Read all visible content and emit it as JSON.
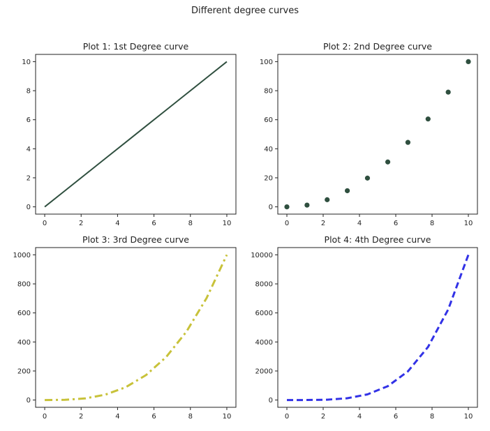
{
  "figure": {
    "suptitle": "Different degree curves"
  },
  "chart_data": [
    {
      "type": "line",
      "title": "Plot 1: 1st Degree curve",
      "xlabel": "",
      "ylabel": "",
      "xlim": [
        -0.5,
        10.5
      ],
      "ylim": [
        -0.5,
        10.5
      ],
      "xticks": [
        0,
        2,
        4,
        6,
        8,
        10
      ],
      "yticks": [
        0,
        2,
        4,
        6,
        8,
        10
      ],
      "series": [
        {
          "style": "solid",
          "marker": "none",
          "color": "#2f4f3f",
          "x": [
            0,
            1.11,
            2.22,
            3.33,
            4.44,
            5.56,
            6.67,
            7.78,
            8.89,
            10
          ],
          "y": [
            0,
            1.11,
            2.22,
            3.33,
            4.44,
            5.56,
            6.67,
            7.78,
            8.89,
            10
          ]
        }
      ],
      "grid": false
    },
    {
      "type": "scatter",
      "title": "Plot 2: 2nd Degree curve",
      "xlabel": "",
      "ylabel": "",
      "xlim": [
        -0.5,
        10.5
      ],
      "ylim": [
        -5,
        105
      ],
      "xticks": [
        0,
        2,
        4,
        6,
        8,
        10
      ],
      "yticks": [
        0,
        20,
        40,
        60,
        80,
        100
      ],
      "series": [
        {
          "style": "none",
          "marker": "circle",
          "color": "#2f4f3f",
          "x": [
            0,
            1.11,
            2.22,
            3.33,
            4.44,
            5.56,
            6.67,
            7.78,
            8.89,
            10
          ],
          "y": [
            0,
            1.2,
            4.9,
            11.1,
            19.8,
            30.9,
            44.4,
            60.5,
            79.0,
            100
          ]
        }
      ],
      "grid": false
    },
    {
      "type": "line",
      "title": "Plot 3: 3rd Degree curve",
      "xlabel": "",
      "ylabel": "",
      "xlim": [
        -0.5,
        10.5
      ],
      "ylim": [
        -50,
        1050
      ],
      "xticks": [
        0,
        2,
        4,
        6,
        8,
        10
      ],
      "yticks": [
        0,
        200,
        400,
        600,
        800,
        1000
      ],
      "series": [
        {
          "style": "dashdot",
          "marker": "none",
          "color": "#c8c23a",
          "x": [
            0,
            1.11,
            2.22,
            3.33,
            4.44,
            5.56,
            6.67,
            7.78,
            8.89,
            10
          ],
          "y": [
            0,
            1.4,
            11.0,
            37.0,
            87.8,
            171.5,
            296.3,
            470.5,
            702.3,
            1000
          ]
        }
      ],
      "grid": false
    },
    {
      "type": "line",
      "title": "Plot 4: 4th Degree curve",
      "xlabel": "",
      "ylabel": "",
      "xlim": [
        -0.5,
        10.5
      ],
      "ylim": [
        -500,
        10500
      ],
      "xticks": [
        0,
        2,
        4,
        6,
        8,
        10
      ],
      "yticks": [
        0,
        2000,
        4000,
        6000,
        8000,
        10000
      ],
      "series": [
        {
          "style": "dashed",
          "marker": "none",
          "color": "#3232e6",
          "x": [
            0,
            1.11,
            2.22,
            3.33,
            4.44,
            5.56,
            6.67,
            7.78,
            8.89,
            10
          ],
          "y": [
            0,
            1.5,
            24.4,
            123.5,
            390.2,
            952.6,
            1975.3,
            3659.5,
            6242.9,
            10000
          ]
        }
      ],
      "grid": false
    }
  ]
}
